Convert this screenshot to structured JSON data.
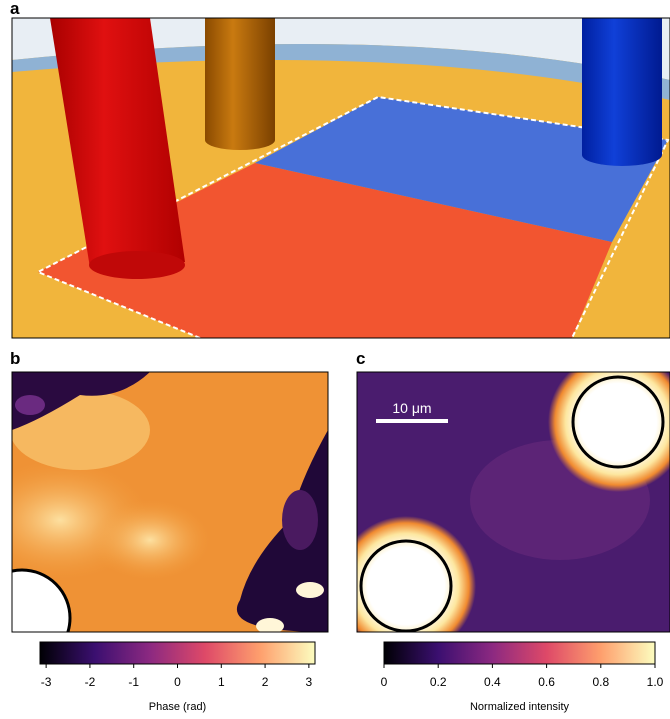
{
  "panels": {
    "a": "a",
    "b": "b",
    "c": "c"
  },
  "scale_bar": "10 μm",
  "chart_data": [
    {
      "type": "colorbar",
      "xlabel": "Phase (rad)",
      "xlim": [
        -3.14,
        3.14
      ],
      "xticks": [
        -3,
        -2,
        -1,
        0,
        1,
        2,
        3
      ]
    },
    {
      "type": "colorbar",
      "xlabel": "Normalized intensity",
      "xlim": [
        0,
        1
      ],
      "xticks": [
        0,
        0.2,
        0.4,
        0.6,
        0.8,
        {
          "value": 1,
          "label": "1.0"
        }
      ]
    }
  ]
}
